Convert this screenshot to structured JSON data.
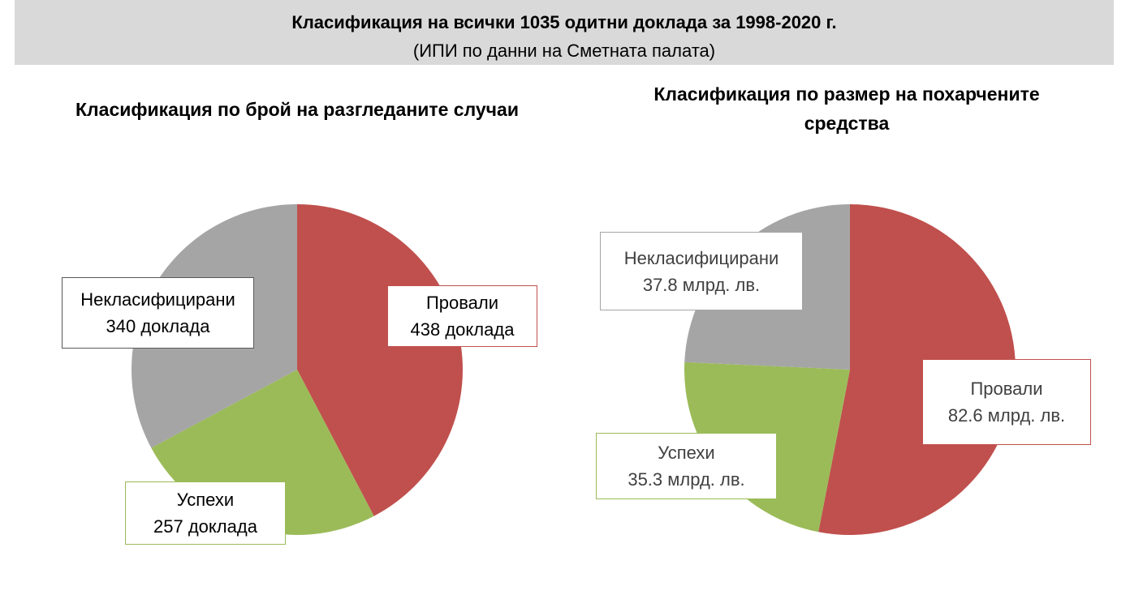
{
  "header": {
    "title": "Класификация на всички 1035 одитни доклада за 1998-2020 г.",
    "subtitle": "(ИПИ по данни на Сметната палата)"
  },
  "chart_data": [
    {
      "type": "pie",
      "title": "Класификация по брой на разгледаните случаи",
      "categories": [
        "Провали",
        "Успехи",
        "Некласифицирани"
      ],
      "values": [
        438,
        257,
        340
      ],
      "value_labels": [
        "438 доклада",
        "257 доклада",
        "340 доклада"
      ],
      "colors": [
        "#C0504D",
        "#9BBB59",
        "#A5A5A5"
      ]
    },
    {
      "type": "pie",
      "title": "Класификация по размер на похарчените средства",
      "categories": [
        "Провали",
        "Успехи",
        "Некласифицирани"
      ],
      "values": [
        82.6,
        35.3,
        37.8
      ],
      "value_labels": [
        "82.6 млрд. лв.",
        "35.3 млрд. лв.",
        "37.8 млрд. лв."
      ],
      "colors": [
        "#C0504D",
        "#9BBB59",
        "#A5A5A5"
      ]
    }
  ]
}
